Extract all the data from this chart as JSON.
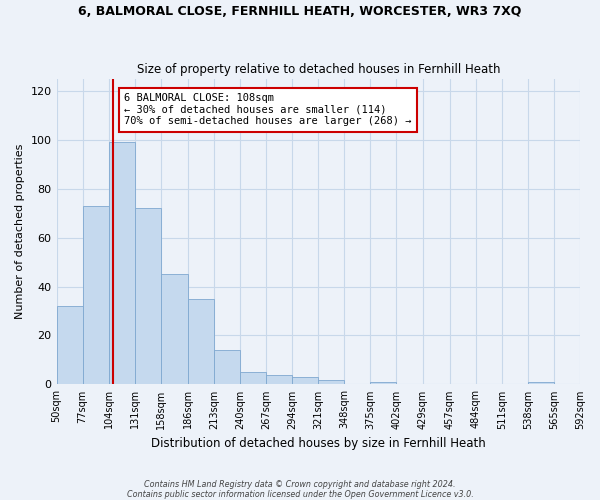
{
  "title1": "6, BALMORAL CLOSE, FERNHILL HEATH, WORCESTER, WR3 7XQ",
  "title2": "Size of property relative to detached houses in Fernhill Heath",
  "xlabel": "Distribution of detached houses by size in Fernhill Heath",
  "ylabel": "Number of detached properties",
  "bar_edges": [
    50,
    77,
    104,
    131,
    158,
    186,
    213,
    240,
    267,
    294,
    321,
    348,
    375,
    402,
    429,
    457,
    484,
    511,
    538,
    565,
    592
  ],
  "bar_heights": [
    32,
    73,
    99,
    72,
    45,
    35,
    14,
    5,
    4,
    3,
    2,
    0,
    1,
    0,
    0,
    0,
    0,
    0,
    1,
    0,
    0
  ],
  "bar_color": "#c5d9ee",
  "bar_edge_color": "#7fa8d0",
  "property_line_x": 108,
  "property_line_color": "#cc0000",
  "ylim": [
    0,
    125
  ],
  "yticks": [
    0,
    20,
    40,
    60,
    80,
    100,
    120
  ],
  "tick_labels": [
    "50sqm",
    "77sqm",
    "104sqm",
    "131sqm",
    "158sqm",
    "186sqm",
    "213sqm",
    "240sqm",
    "267sqm",
    "294sqm",
    "321sqm",
    "348sqm",
    "375sqm",
    "402sqm",
    "429sqm",
    "457sqm",
    "484sqm",
    "511sqm",
    "538sqm",
    "565sqm",
    "592sqm"
  ],
  "annotation_line1": "6 BALMORAL CLOSE: 108sqm",
  "annotation_line2": "← 30% of detached houses are smaller (114)",
  "annotation_line3": "70% of semi-detached houses are larger (268) →",
  "grid_color": "#c8d8ea",
  "background_color": "#edf2f9",
  "footer_line1": "Contains HM Land Registry data © Crown copyright and database right 2024.",
  "footer_line2": "Contains public sector information licensed under the Open Government Licence v3.0."
}
